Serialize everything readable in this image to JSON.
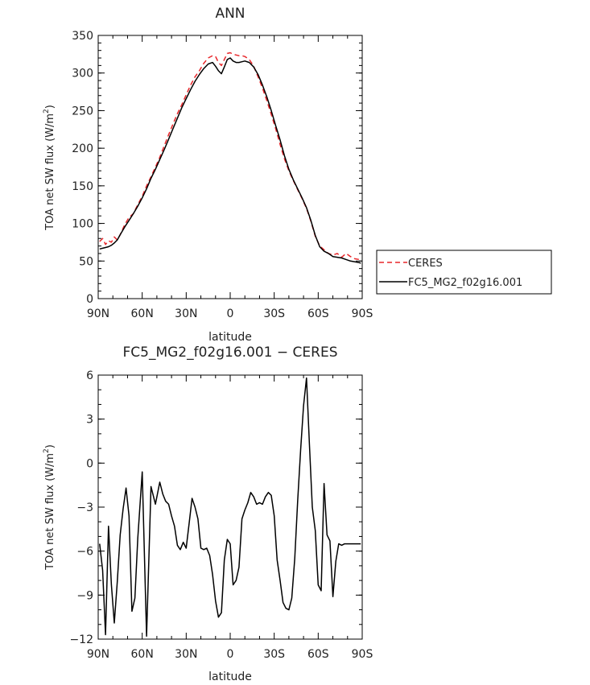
{
  "chart_data": [
    {
      "type": "line",
      "title": "ANN",
      "xlabel": "latitude",
      "ylabel_main": "TOA net SW flux (W/m",
      "ylabel_sup": "2",
      "ylabel_tail": ")",
      "x_ticks": [
        90,
        60,
        30,
        0,
        -30,
        -60,
        -90
      ],
      "x_tick_labels": [
        "90N",
        "60N",
        "30N",
        "0",
        "30S",
        "60S",
        "90S"
      ],
      "xlim": [
        90,
        -90
      ],
      "y_ticks": [
        0,
        50,
        100,
        150,
        200,
        250,
        300,
        350
      ],
      "y_tick_labels": [
        "0",
        "50",
        "100",
        "150",
        "200",
        "250",
        "300",
        "350"
      ],
      "ylim": [
        0,
        350
      ],
      "legend_position": "right",
      "series": [
        {
          "name": "CERES",
          "color": "#e8262a",
          "dash": "dashed",
          "x": [
            89,
            87,
            85,
            83,
            81,
            79,
            77,
            75,
            72,
            69,
            66,
            63,
            60,
            57,
            54,
            51,
            48,
            45,
            42,
            39,
            36,
            33,
            30,
            27,
            24,
            21,
            18,
            15,
            12,
            10,
            8,
            6,
            4,
            2,
            0,
            -2,
            -4,
            -6,
            -8,
            -10,
            -13,
            -16,
            -19,
            -22,
            -25,
            -28,
            -31,
            -34,
            -37,
            -40,
            -43,
            -46,
            -49,
            -52,
            -55,
            -58,
            -61,
            -64,
            -67,
            -70,
            -73,
            -76,
            -79,
            -82,
            -85,
            -88,
            -89
          ],
          "values": [
            76,
            80,
            72,
            77,
            75,
            82,
            78,
            85,
            98,
            108,
            113,
            125,
            136,
            150,
            162,
            175,
            188,
            203,
            218,
            232,
            246,
            258,
            271,
            284,
            295,
            303,
            313,
            320,
            323,
            322,
            314,
            310,
            318,
            326,
            327,
            325,
            324,
            323,
            323,
            322,
            318,
            309,
            295,
            280,
            263,
            245,
            226,
            205,
            186,
            170,
            157,
            145,
            133,
            120,
            103,
            83,
            70,
            65,
            60,
            58,
            60,
            55,
            60,
            56,
            53,
            52,
            52
          ]
        },
        {
          "name": "FC5_MG2_f02g16.001",
          "color": "#000000",
          "dash": "solid",
          "x": [
            89,
            87,
            85,
            83,
            81,
            79,
            77,
            75,
            72,
            69,
            66,
            63,
            60,
            57,
            54,
            51,
            48,
            45,
            42,
            39,
            36,
            33,
            30,
            27,
            24,
            21,
            18,
            15,
            12,
            10,
            8,
            6,
            4,
            2,
            0,
            -2,
            -4,
            -6,
            -8,
            -10,
            -13,
            -16,
            -19,
            -22,
            -25,
            -28,
            -31,
            -34,
            -37,
            -40,
            -43,
            -46,
            -49,
            -52,
            -55,
            -58,
            -61,
            -64,
            -67,
            -70,
            -73,
            -76,
            -79,
            -82,
            -85,
            -88,
            -89
          ],
          "values": [
            66,
            67,
            68,
            69,
            71,
            74,
            78,
            85,
            95,
            104,
            113,
            123,
            134,
            146,
            160,
            172,
            185,
            198,
            212,
            226,
            240,
            254,
            266,
            278,
            289,
            298,
            306,
            312,
            314,
            309,
            303,
            299,
            308,
            318,
            320,
            316,
            314,
            314,
            315,
            316,
            314,
            308,
            298,
            284,
            268,
            250,
            230,
            211,
            190,
            172,
            158,
            146,
            134,
            121,
            104,
            84,
            69,
            63,
            60,
            56,
            55,
            54,
            52,
            50,
            49,
            48,
            47
          ]
        }
      ]
    },
    {
      "type": "line",
      "title": "FC5_MG2_f02g16.001 − CERES",
      "xlabel": "latitude",
      "ylabel_main": "TOA net SW flux (W/m",
      "ylabel_sup": "2",
      "ylabel_tail": ")",
      "x_ticks": [
        90,
        60,
        30,
        0,
        -30,
        -60,
        -90
      ],
      "x_tick_labels": [
        "90N",
        "60N",
        "30N",
        "0",
        "30S",
        "60S",
        "90S"
      ],
      "xlim": [
        90,
        -90
      ],
      "y_ticks": [
        -12,
        -9,
        -6,
        -3,
        0,
        3,
        6
      ],
      "y_tick_labels": [
        "−12",
        "−9",
        "−6",
        "−3",
        "0",
        "3",
        "6"
      ],
      "ylim": [
        -12,
        6
      ],
      "series": [
        {
          "name": "",
          "color": "#000000",
          "dash": "solid",
          "x": [
            89,
            87,
            85,
            83,
            81,
            79,
            77,
            75,
            73,
            71,
            69,
            67,
            65,
            63,
            60,
            57,
            54,
            51,
            48,
            46,
            44,
            42,
            40,
            38,
            36,
            34,
            32,
            30,
            28,
            26,
            24,
            22,
            20,
            18,
            16,
            14,
            12,
            10,
            8,
            6,
            4,
            2,
            0,
            -2,
            -4,
            -6,
            -8,
            -10,
            -12,
            -14,
            -16,
            -18,
            -20,
            -22,
            -24,
            -26,
            -28,
            -30,
            -32,
            -34,
            -36,
            -38,
            -40,
            -42,
            -44,
            -46,
            -48,
            -50,
            -52,
            -54,
            -56,
            -58,
            -60,
            -62,
            -64,
            -66,
            -68,
            -70,
            -72,
            -74,
            -76,
            -78,
            -80,
            -82,
            -84,
            -86,
            -88,
            -89
          ],
          "values": [
            -5.5,
            -7.3,
            -11.7,
            -4.3,
            -8.3,
            -10.9,
            -8.1,
            -4.9,
            -3.1,
            -1.7,
            -3.6,
            -10.1,
            -9.2,
            -5.1,
            -0.6,
            -11.8,
            -1.6,
            -2.8,
            -1.3,
            -2.1,
            -2.6,
            -2.8,
            -3.6,
            -4.3,
            -5.6,
            -5.9,
            -5.4,
            -5.8,
            -4.1,
            -2.4,
            -3.0,
            -3.8,
            -5.8,
            -5.9,
            -5.8,
            -6.3,
            -7.6,
            -9.4,
            -10.5,
            -10.2,
            -6.6,
            -5.2,
            -5.5,
            -8.3,
            -8.0,
            -7.1,
            -3.8,
            -3.2,
            -2.7,
            -2.0,
            -2.3,
            -2.8,
            -2.7,
            -2.8,
            -2.3,
            -2.0,
            -2.2,
            -3.6,
            -6.6,
            -8.0,
            -9.5,
            -9.9,
            -10.0,
            -9.2,
            -6.5,
            -2.6,
            0.9,
            3.9,
            5.8,
            1.3,
            -3.0,
            -4.6,
            -8.3,
            -8.7,
            -1.4,
            -4.9,
            -5.3,
            -9.1,
            -6.7,
            -5.5,
            -5.6,
            -5.5,
            -5.5,
            -5.5,
            -5.5,
            -5.5,
            -5.5,
            -5.5
          ]
        }
      ]
    }
  ]
}
